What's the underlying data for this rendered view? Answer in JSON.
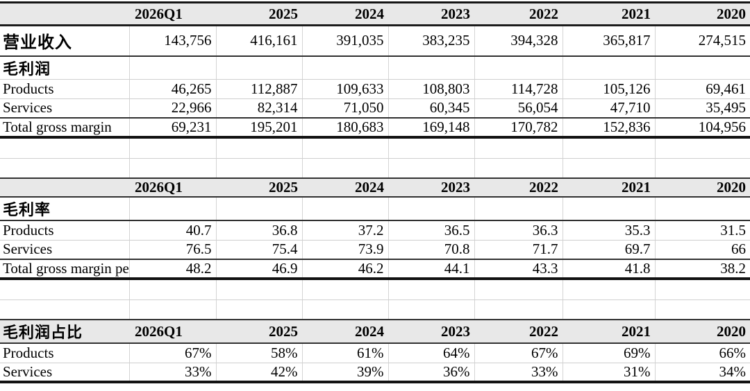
{
  "colors": {
    "header_bg": "#e8e8e8",
    "grid_light": "#d4d4d4",
    "rule_dark": "#303030",
    "rule_thick": "#121212",
    "text": "#000000"
  },
  "columns": [
    "2026Q1",
    "2025",
    "2024",
    "2023",
    "2022",
    "2021",
    "2020"
  ],
  "gross_profit": {
    "revenue_label": "营业收入",
    "revenue_values": [
      "143,756",
      "416,161",
      "391,035",
      "383,235",
      "394,328",
      "365,817",
      "274,515"
    ],
    "section_label": "毛利润",
    "rows": [
      {
        "label": "Products",
        "values": [
          "46,265",
          "112,887",
          "109,633",
          "108,803",
          "114,728",
          "105,126",
          "69,461"
        ]
      },
      {
        "label": "Services",
        "values": [
          "22,966",
          "82,314",
          "71,050",
          "60,345",
          "56,054",
          "47,710",
          "35,495"
        ]
      },
      {
        "label": "Total gross margin",
        "values": [
          "69,231",
          "195,201",
          "180,683",
          "169,148",
          "170,782",
          "152,836",
          "104,956"
        ]
      }
    ]
  },
  "gross_margin_rate": {
    "section_label": "毛利率",
    "rows": [
      {
        "label": "Products",
        "values": [
          "40.7",
          "36.8",
          "37.2",
          "36.5",
          "36.3",
          "35.3",
          "31.5"
        ]
      },
      {
        "label": "Services",
        "values": [
          "76.5",
          "75.4",
          "73.9",
          "70.8",
          "71.7",
          "69.7",
          "66"
        ]
      },
      {
        "label": "Total gross margin pe",
        "values": [
          "48.2",
          "46.9",
          "46.2",
          "44.1",
          "43.3",
          "41.8",
          "38.2"
        ]
      }
    ]
  },
  "gross_profit_share": {
    "section_label": "毛利润占比",
    "rows": [
      {
        "label": "Products",
        "values": [
          "67%",
          "58%",
          "61%",
          "64%",
          "67%",
          "69%",
          "66%"
        ]
      },
      {
        "label": "Services",
        "values": [
          "33%",
          "42%",
          "39%",
          "36%",
          "33%",
          "31%",
          "34%"
        ]
      }
    ]
  }
}
